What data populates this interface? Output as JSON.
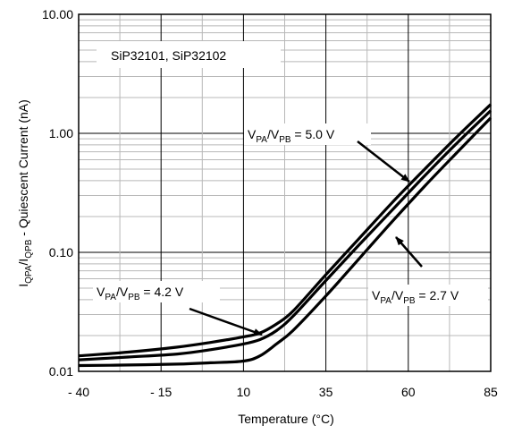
{
  "chart_data": {
    "type": "line",
    "xlabel": "Temperature (°C)",
    "ylabel_parts": [
      "I",
      "QPA",
      "/I",
      "QPB",
      " - Quiescent Current (nA)"
    ],
    "x_ticks": [
      "- 40",
      "- 15",
      "10",
      "35",
      "60",
      "85"
    ],
    "x_tick_values": [
      -40,
      -15,
      10,
      35,
      60,
      85
    ],
    "y_ticks": [
      "10.00",
      "1.00",
      "0.10",
      "0.01"
    ],
    "y_tick_values": [
      10,
      1,
      0.1,
      0.01
    ],
    "xlim": [
      -40,
      85
    ],
    "ylim": [
      0.01,
      10
    ],
    "y_scale": "log",
    "grid": true,
    "legend_box_text": "SiP32101, SiP32102",
    "series": [
      {
        "name": "V_PA/V_PB = 5.0 V",
        "name_parts": [
          "V",
          "PA",
          "/V",
          "PB",
          " = 5.0 V"
        ],
        "x": [
          -40,
          -25,
          -10,
          0,
          10,
          15,
          20,
          25,
          35,
          45,
          55,
          65,
          75,
          85
        ],
        "y": [
          0.0135,
          0.0145,
          0.016,
          0.0175,
          0.0195,
          0.021,
          0.025,
          0.032,
          0.065,
          0.13,
          0.26,
          0.5,
          0.95,
          1.75
        ]
      },
      {
        "name": "V_PA/V_PB = 4.2 V",
        "name_parts": [
          "V",
          "PA",
          "/V",
          "PB",
          " = 4.2 V"
        ],
        "x": [
          -40,
          -25,
          -10,
          0,
          10,
          15,
          20,
          25,
          35,
          45,
          55,
          65,
          75,
          85
        ],
        "y": [
          0.0125,
          0.0132,
          0.014,
          0.0152,
          0.017,
          0.0185,
          0.022,
          0.029,
          0.058,
          0.115,
          0.225,
          0.44,
          0.84,
          1.55
        ]
      },
      {
        "name": "V_PA/V_PB = 2.7 V",
        "name_parts": [
          "V",
          "PA",
          "/V",
          "PB",
          " = 2.7 V"
        ],
        "x": [
          -40,
          -25,
          -10,
          0,
          10,
          15,
          20,
          25,
          35,
          45,
          55,
          65,
          75,
          85
        ],
        "y": [
          0.0112,
          0.0113,
          0.0115,
          0.0118,
          0.0122,
          0.0135,
          0.017,
          0.022,
          0.043,
          0.088,
          0.18,
          0.36,
          0.7,
          1.35
        ]
      }
    ]
  }
}
